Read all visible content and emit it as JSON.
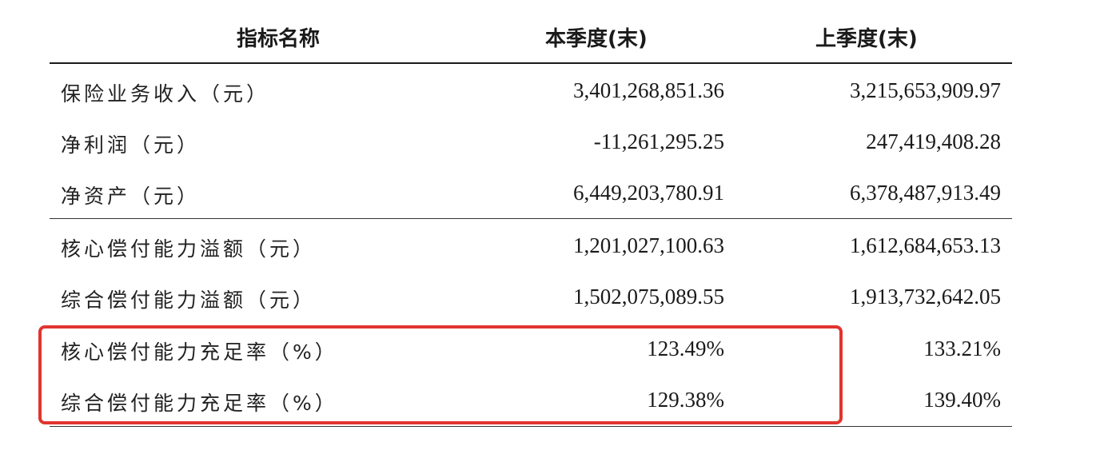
{
  "table": {
    "headers": {
      "name": "指标名称",
      "current": "本季度(末)",
      "previous": "上季度(末)"
    },
    "rows": [
      {
        "label": "保险业务收入（元）",
        "current": "3,401,268,851.36",
        "previous": "3,215,653,909.97"
      },
      {
        "label": "净利润（元）",
        "current": "-11,261,295.25",
        "previous": "247,419,408.28"
      },
      {
        "label": "净资产（元）",
        "current": "6,449,203,780.91",
        "previous": "6,378,487,913.49"
      },
      {
        "label": "核心偿付能力溢额（元）",
        "current": "1,201,027,100.63",
        "previous": "1,612,684,653.13"
      },
      {
        "label": "综合偿付能力溢额（元）",
        "current": "1,502,075,089.55",
        "previous": "1,913,732,642.05"
      },
      {
        "label": "核心偿付能力充足率（%）",
        "current": "123.49%",
        "previous": "133.21%"
      },
      {
        "label": "综合偿付能力充足率（%）",
        "current": "129.38%",
        "previous": "139.40%"
      }
    ]
  },
  "highlight": {
    "color": "#e1342e",
    "covers_rows": [
      "核心偿付能力充足率（%）",
      "综合偿付能力充足率（%）"
    ]
  }
}
